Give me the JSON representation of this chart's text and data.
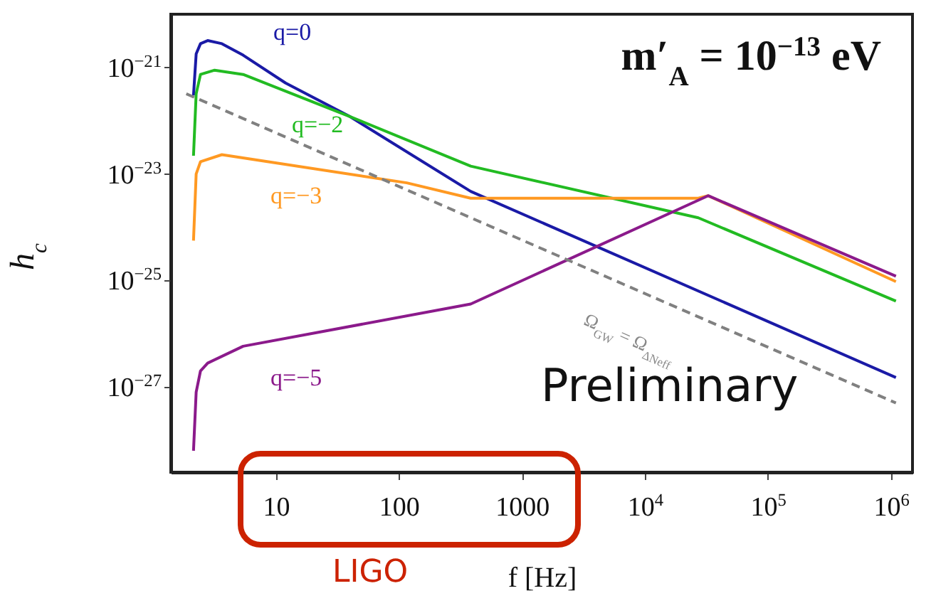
{
  "chart_data": {
    "type": "line",
    "title": "m′$_{A}$ = 10$^{−13}$ eV",
    "xlabel": "f [Hz]",
    "ylabel": "h$_{c}$",
    "log": "xy",
    "grid": false,
    "xlim": [
      1.4,
      1500000
    ],
    "ylim": [
      2.5e-29,
      1e-20
    ],
    "xticks": [
      10,
      100,
      1000,
      {
        "value": 10000,
        "label": "10$^{4}$"
      },
      {
        "value": 100000,
        "label": "10$^{5}$"
      },
      {
        "value": 1000000,
        "label": "10$^{6}$"
      }
    ],
    "yticks": [
      {
        "value": 1e-21,
        "label": "10$^{−21}$"
      },
      {
        "value": 1e-23,
        "label": "10$^{−23}$"
      },
      {
        "value": 1e-25,
        "label": "10$^{−25}$"
      },
      {
        "value": 1e-27,
        "label": "10$^{−27}$"
      }
    ],
    "series": [
      {
        "name": "q=0",
        "color": "#1a1aa6",
        "x": [
          2.14,
          2.25,
          2.44,
          2.79,
          3.64,
          5.42,
          12,
          39.9,
          384,
          1100000
        ],
        "values": [
          3e-22,
          1.8e-21,
          2.8e-21,
          3.2e-21,
          2.8e-21,
          1.7e-21,
          5.1e-22,
          1.2e-22,
          4.7e-24,
          1.5e-27
        ]
      },
      {
        "name": "q=−2",
        "color": "#22bb22",
        "x": [
          2.14,
          2.25,
          2.44,
          3.18,
          5.42,
          39.9,
          384,
          27200,
          1100000
        ],
        "values": [
          2.2e-23,
          3.2e-22,
          7.4e-22,
          8.9e-22,
          7.4e-22,
          1.2e-22,
          1.4e-23,
          1.5e-24,
          4.1e-26
        ]
      },
      {
        "name": "q=−3",
        "color": "#ff9922",
        "x": [
          2.14,
          2.25,
          2.44,
          3.64,
          116,
          384,
          27200,
          32700,
          1100000
        ],
        "values": [
          5.6e-25,
          1e-23,
          1.7e-23,
          2.3e-23,
          6.8e-24,
          3.5e-24,
          3.5e-24,
          3.9e-24,
          9.5e-26
        ]
      },
      {
        "name": "q=−5",
        "color": "#8b1a8b",
        "x": [
          2.14,
          2.25,
          2.44,
          2.79,
          5.42,
          384,
          32700,
          1100000
        ],
        "values": [
          6.3e-29,
          8e-28,
          2e-27,
          2.8e-27,
          5.8e-27,
          3.6e-26,
          3.9e-24,
          1.2e-25
        ]
      },
      {
        "color": "#808080",
        "line_style": "dashed",
        "x": [
          1.87,
          1100000
        ],
        "values": [
          3.2e-22,
          5e-28
        ]
      }
    ],
    "annotations": [
      "Ω$_{GW}$ = Ω$_{ΔNeff}$",
      "Preliminary",
      "LIGO"
    ]
  }
}
